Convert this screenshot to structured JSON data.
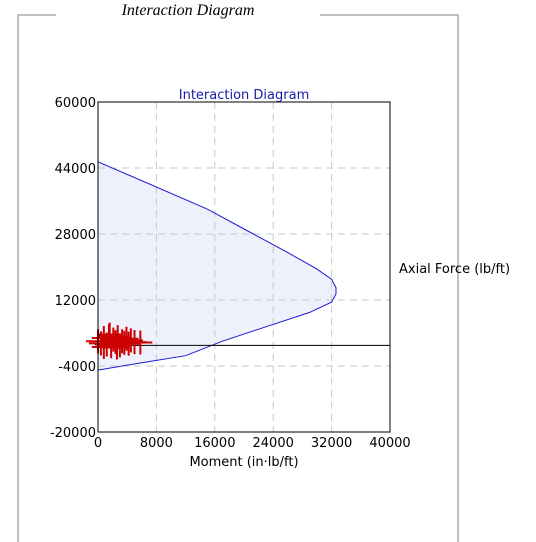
{
  "groupbox": {
    "title": "Interaction Diagram"
  },
  "chart_data": {
    "type": "area",
    "title": "Interaction Diagram",
    "xlabel": "Moment (in·lb/ft)",
    "ylabel": "Axial Force (lb/ft)",
    "xlim": [
      0,
      40000
    ],
    "ylim": [
      -20000,
      60000
    ],
    "xticks": [
      "0",
      "8000",
      "16000",
      "24000",
      "32000",
      "40000"
    ],
    "yticks": [
      "60000",
      "44000",
      "28000",
      "12000",
      "-4000",
      "-20000"
    ],
    "grid": true,
    "series": [
      {
        "x": [
          0,
          15000,
          26000,
          30000,
          32000,
          32600,
          32600,
          32000,
          29000,
          23000,
          17000,
          12000,
          6000,
          0
        ],
        "y": [
          45500,
          34000,
          23500,
          19500,
          17000,
          15000,
          13500,
          11500,
          9000,
          5500,
          2000,
          -1500,
          -3200,
          -5000
        ]
      }
    ],
    "reference_line": {
      "y": 1000
    },
    "load_points": [
      {
        "x": 0,
        "y": 2000
      },
      {
        "x": 400,
        "y": 1500
      },
      {
        "x": 800,
        "y": 2800
      },
      {
        "x": 1200,
        "y": 1200
      },
      {
        "x": 1500,
        "y": 3200
      },
      {
        "x": 1800,
        "y": 800
      },
      {
        "x": 2100,
        "y": 2400
      },
      {
        "x": 2400,
        "y": 1800
      },
      {
        "x": 2700,
        "y": 3000
      },
      {
        "x": 3000,
        "y": 1000
      },
      {
        "x": 3300,
        "y": 2000
      },
      {
        "x": 3600,
        "y": 1600
      },
      {
        "x": 3900,
        "y": 2600
      },
      {
        "x": 4200,
        "y": 1400
      },
      {
        "x": 4500,
        "y": 2200
      },
      {
        "x": 5000,
        "y": 1800
      },
      {
        "x": 5800,
        "y": 1700
      },
      {
        "x": 800,
        "y": 600
      },
      {
        "x": 1600,
        "y": 3600
      },
      {
        "x": 2600,
        "y": 500
      }
    ],
    "colors": {
      "envelope": "#1a1ad6",
      "fill": "#eef0fb",
      "loads": "#cc0000",
      "grid": "#c8c8c8",
      "title": "#1a1aa6"
    }
  }
}
